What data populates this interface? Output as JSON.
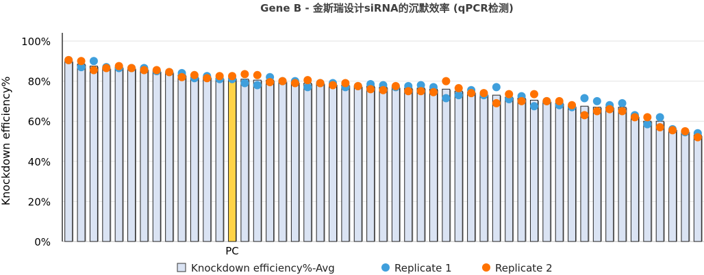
{
  "chart_data": {
    "type": "bar",
    "title": "Gene B - 金斯瑞设计siRNA的沉默效率 (qPCR检测)",
    "xlabel": "",
    "ylabel": "Knockdown efficiency%",
    "ylim": [
      0,
      100
    ],
    "yticks": [
      "0%",
      "20%",
      "40%",
      "60%",
      "80%",
      "100%"
    ],
    "ytick_values": [
      0,
      20,
      40,
      60,
      80,
      100
    ],
    "grid": true,
    "legend_position": "bottom",
    "highlight_label": "PC",
    "highlight_index": 13,
    "colors": {
      "bar": "#dae3f3",
      "highlight": "#ffd347",
      "rep1": "#3f9fdc",
      "rep2": "#ff7200"
    },
    "series": [
      {
        "name": "Knockdown efficiency%-Avg",
        "type": "bar",
        "values": [
          90,
          88.5,
          87.5,
          86.5,
          87,
          86.5,
          86,
          85,
          84.5,
          83,
          82,
          82,
          81.5,
          81.5,
          81,
          80.5,
          80.5,
          80,
          79.5,
          79,
          79,
          78.5,
          78,
          77.5,
          77.5,
          77,
          77,
          76.5,
          76.5,
          76,
          76,
          75,
          74.5,
          73.5,
          73,
          72,
          71.5,
          70.5,
          70,
          69,
          67.5,
          67.5,
          67,
          67,
          67,
          62.5,
          60,
          60,
          56,
          55,
          53
        ]
      },
      {
        "name": "Replicate 1",
        "type": "scatter",
        "values": [
          90.5,
          87,
          90,
          87,
          86.5,
          86.5,
          86.5,
          85,
          84.5,
          84,
          81.5,
          82.5,
          81,
          81,
          79,
          78,
          82,
          80,
          80,
          77,
          79,
          79,
          77,
          77.5,
          78.5,
          78,
          77,
          77.5,
          78,
          77,
          71.5,
          73,
          75.5,
          73,
          77,
          71,
          72.5,
          67.5,
          70,
          68,
          67,
          71.5,
          70,
          68,
          69,
          63,
          58.5,
          62,
          56,
          54.5,
          54
        ]
      },
      {
        "name": "Replicate 2",
        "type": "scatter",
        "values": [
          90.5,
          90,
          85.5,
          86.5,
          87.5,
          86.5,
          85.5,
          85.5,
          84.5,
          82,
          83,
          81.5,
          82.5,
          82.5,
          83.5,
          83,
          79.5,
          80,
          79,
          80.5,
          79,
          78,
          79,
          77.5,
          76,
          75.5,
          77.5,
          75,
          75,
          74.5,
          80,
          76.5,
          74,
          74,
          69,
          73.5,
          70,
          73.5,
          70,
          70,
          68,
          63,
          65,
          66,
          65,
          62,
          62,
          57,
          55.5,
          55,
          52
        ]
      }
    ]
  }
}
